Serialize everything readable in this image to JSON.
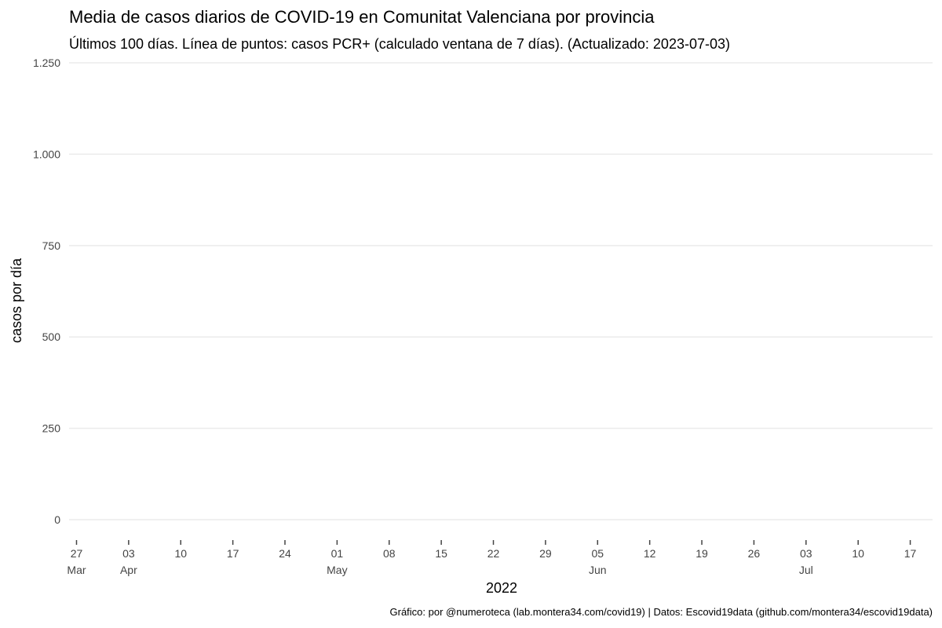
{
  "chart_data": {
    "type": "line",
    "title": "Media de casos diarios de COVID-19 en Comunitat Valenciana por provincia",
    "subtitle": "Últimos 100 días. Línea de puntos: casos PCR+ (calculado ventana de 7 días). (Actualizado: 2023-07-03)",
    "y_label": "casos por día",
    "x_label": "2022",
    "caption": "Gráfico: por @numeroteca (lab.montera34.com/covid19) | Datos: Escovid19data (github.com/montera34/escovid19data)",
    "series": [],
    "ylim": [
      -45,
      1250
    ],
    "yticks": [
      0,
      250,
      500,
      750,
      {
        "value": 1000,
        "label": "1.000"
      },
      {
        "value": 1250,
        "label": "1.250"
      }
    ],
    "xlim": [
      "2022-03-26",
      "2022-07-20"
    ],
    "xticks": [
      {
        "value": "2022-03-27",
        "label": "27 Mar"
      },
      {
        "value": "2022-04-03",
        "label": "03 Apr"
      },
      {
        "value": "2022-04-10",
        "label": "10"
      },
      {
        "value": "2022-04-17",
        "label": "17"
      },
      {
        "value": "2022-04-24",
        "label": "24"
      },
      {
        "value": "2022-05-01",
        "label": "01 May"
      },
      {
        "value": "2022-05-08",
        "label": "08"
      },
      {
        "value": "2022-05-15",
        "label": "15"
      },
      {
        "value": "2022-05-22",
        "label": "22"
      },
      {
        "value": "2022-05-29",
        "label": "29"
      },
      {
        "value": "2022-06-05",
        "label": "05 Jun"
      },
      {
        "value": "2022-06-12",
        "label": "12"
      },
      {
        "value": "2022-06-19",
        "label": "19"
      },
      {
        "value": "2022-06-26",
        "label": "26"
      },
      {
        "value": "2022-07-03",
        "label": "03 Jul"
      },
      {
        "value": "2022-07-10",
        "label": "10"
      },
      {
        "value": "2022-07-17",
        "label": "17"
      }
    ],
    "grid": true
  }
}
